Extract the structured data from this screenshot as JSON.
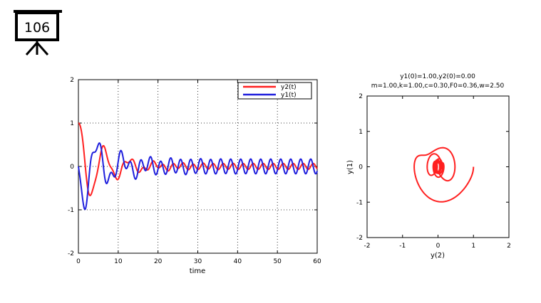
{
  "slide": {
    "number": "106"
  },
  "chart_data": [
    {
      "type": "line",
      "title": "",
      "xlabel": "time",
      "ylabel": "",
      "xlim": [
        0,
        60
      ],
      "ylim": [
        -2,
        2
      ],
      "xticks": [
        "0",
        "10",
        "20",
        "30",
        "40",
        "50",
        "60"
      ],
      "yticks": [
        "-2",
        "-1",
        "0",
        "1",
        "2"
      ],
      "grid": true,
      "legend_position": "top-right",
      "series": [
        {
          "name": "y2(t)",
          "color": "#ff2020"
        },
        {
          "name": "y1(t)",
          "color": "#1f1fdd"
        }
      ]
    },
    {
      "type": "line",
      "title_line1": "y1(0)=1.00,y2(0)=0.00",
      "title_line2": "m=1.00,k=1.00,c=0.30,F0=0.36,w=2.50",
      "xlabel": "y(2)",
      "ylabel": "y(1)",
      "xlim": [
        -2,
        2
      ],
      "ylim": [
        -2,
        2
      ],
      "xticks": [
        "-2",
        "-1",
        "0",
        "1",
        "2"
      ],
      "yticks": [
        "-2",
        "-1",
        "0",
        "1",
        "2"
      ],
      "grid": false,
      "series": [
        {
          "name": "",
          "color": "#ff2020"
        }
      ]
    }
  ]
}
